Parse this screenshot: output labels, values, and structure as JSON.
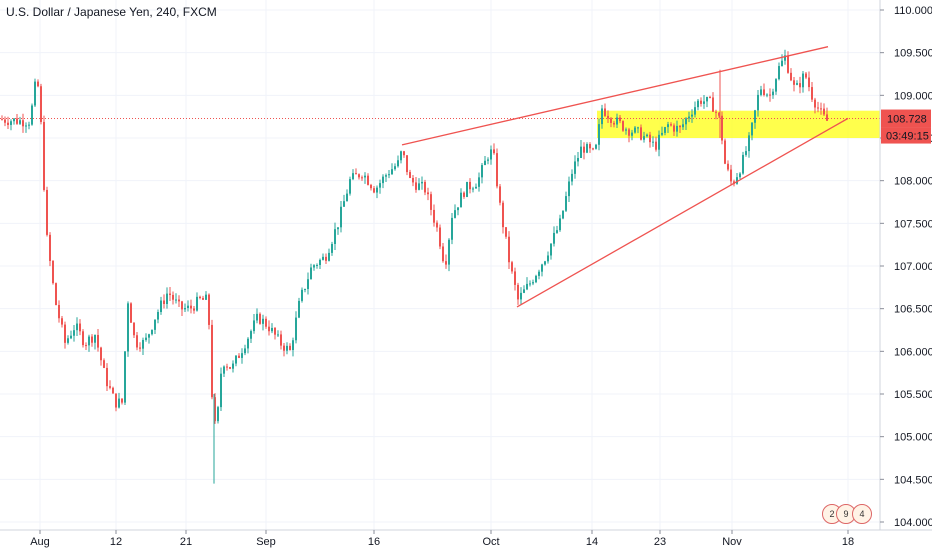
{
  "title": "U.S. Dollar / Japanese Yen, 240, FXCM",
  "chart_data": {
    "type": "candlestick",
    "title": "U.S. Dollar / Japanese Yen, 240, FXCM",
    "y_ticks": [
      "110.000",
      "109.500",
      "109.000",
      "108.500",
      "108.000",
      "107.500",
      "107.000",
      "106.500",
      "106.000",
      "105.500",
      "105.000",
      "104.500",
      "104.000"
    ],
    "x_ticks": [
      "Aug",
      "12",
      "21",
      "Sep",
      "16",
      "Oct",
      "14",
      "23",
      "Nov",
      "18"
    ],
    "ylim": [
      104.0,
      110.0
    ],
    "current_price": "108.728",
    "countdown": "03:49:15",
    "colors": {
      "up": "#26a69a",
      "down": "#ef5350",
      "trendline": "#ef5350",
      "zone": "#ffff00"
    },
    "close_path": [
      {
        "x": 0,
        "y": 108.72
      },
      {
        "x": 20,
        "y": 108.7
      },
      {
        "x": 30,
        "y": 108.7
      },
      {
        "x": 37,
        "y": 109.25
      },
      {
        "x": 42,
        "y": 108.5
      },
      {
        "x": 46,
        "y": 107.4
      },
      {
        "x": 55,
        "y": 106.6
      },
      {
        "x": 65,
        "y": 106.1
      },
      {
        "x": 75,
        "y": 106.3
      },
      {
        "x": 85,
        "y": 106.1
      },
      {
        "x": 95,
        "y": 106.2
      },
      {
        "x": 105,
        "y": 105.7
      },
      {
        "x": 115,
        "y": 105.4
      },
      {
        "x": 122,
        "y": 105.4
      },
      {
        "x": 128,
        "y": 106.6
      },
      {
        "x": 135,
        "y": 106.1
      },
      {
        "x": 145,
        "y": 106.1
      },
      {
        "x": 155,
        "y": 106.4
      },
      {
        "x": 168,
        "y": 106.7
      },
      {
        "x": 180,
        "y": 106.5
      },
      {
        "x": 190,
        "y": 106.5
      },
      {
        "x": 200,
        "y": 106.6
      },
      {
        "x": 208,
        "y": 106.6
      },
      {
        "x": 212,
        "y": 105.5
      },
      {
        "x": 216,
        "y": 105.0
      },
      {
        "x": 222,
        "y": 105.9
      },
      {
        "x": 232,
        "y": 105.8
      },
      {
        "x": 245,
        "y": 106.1
      },
      {
        "x": 258,
        "y": 106.4
      },
      {
        "x": 268,
        "y": 106.3
      },
      {
        "x": 280,
        "y": 106.1
      },
      {
        "x": 290,
        "y": 106.0
      },
      {
        "x": 300,
        "y": 106.6
      },
      {
        "x": 312,
        "y": 107.0
      },
      {
        "x": 325,
        "y": 107.1
      },
      {
        "x": 338,
        "y": 107.5
      },
      {
        "x": 350,
        "y": 108.0
      },
      {
        "x": 362,
        "y": 108.1
      },
      {
        "x": 375,
        "y": 107.9
      },
      {
        "x": 388,
        "y": 108.1
      },
      {
        "x": 398,
        "y": 108.2
      },
      {
        "x": 402,
        "y": 108.35
      },
      {
        "x": 410,
        "y": 108.0
      },
      {
        "x": 425,
        "y": 107.9
      },
      {
        "x": 438,
        "y": 107.4
      },
      {
        "x": 445,
        "y": 107.0
      },
      {
        "x": 452,
        "y": 107.6
      },
      {
        "x": 465,
        "y": 107.9
      },
      {
        "x": 478,
        "y": 108.0
      },
      {
        "x": 488,
        "y": 108.3
      },
      {
        "x": 493,
        "y": 108.35
      },
      {
        "x": 500,
        "y": 107.7
      },
      {
        "x": 510,
        "y": 107.0
      },
      {
        "x": 518,
        "y": 106.6
      },
      {
        "x": 530,
        "y": 106.8
      },
      {
        "x": 545,
        "y": 107.1
      },
      {
        "x": 560,
        "y": 107.5
      },
      {
        "x": 572,
        "y": 108.1
      },
      {
        "x": 582,
        "y": 108.4
      },
      {
        "x": 595,
        "y": 108.3
      },
      {
        "x": 602,
        "y": 108.85
      },
      {
        "x": 615,
        "y": 108.7
      },
      {
        "x": 628,
        "y": 108.6
      },
      {
        "x": 640,
        "y": 108.55
      },
      {
        "x": 655,
        "y": 108.4
      },
      {
        "x": 668,
        "y": 108.65
      },
      {
        "x": 680,
        "y": 108.6
      },
      {
        "x": 690,
        "y": 108.8
      },
      {
        "x": 700,
        "y": 108.95
      },
      {
        "x": 712,
        "y": 108.9
      },
      {
        "x": 720,
        "y": 108.7
      },
      {
        "x": 725,
        "y": 108.2
      },
      {
        "x": 732,
        "y": 107.95
      },
      {
        "x": 742,
        "y": 108.2
      },
      {
        "x": 750,
        "y": 108.5
      },
      {
        "x": 760,
        "y": 109.1
      },
      {
        "x": 770,
        "y": 109.0
      },
      {
        "x": 778,
        "y": 109.3
      },
      {
        "x": 785,
        "y": 109.45
      },
      {
        "x": 795,
        "y": 109.05
      },
      {
        "x": 805,
        "y": 109.25
      },
      {
        "x": 812,
        "y": 109.0
      },
      {
        "x": 820,
        "y": 108.8
      },
      {
        "x": 826,
        "y": 108.7
      }
    ],
    "trendlines": [
      {
        "from": {
          "x": 402,
          "y": 108.42
        },
        "to": {
          "x": 828,
          "y": 109.57
        }
      },
      {
        "from": {
          "x": 517,
          "y": 106.52
        },
        "to": {
          "x": 848,
          "y": 108.73
        }
      }
    ],
    "zone": {
      "x_from": 597,
      "x_to": 880,
      "y_low": 108.5,
      "y_high": 108.82
    },
    "price_line": 108.728
  }
}
